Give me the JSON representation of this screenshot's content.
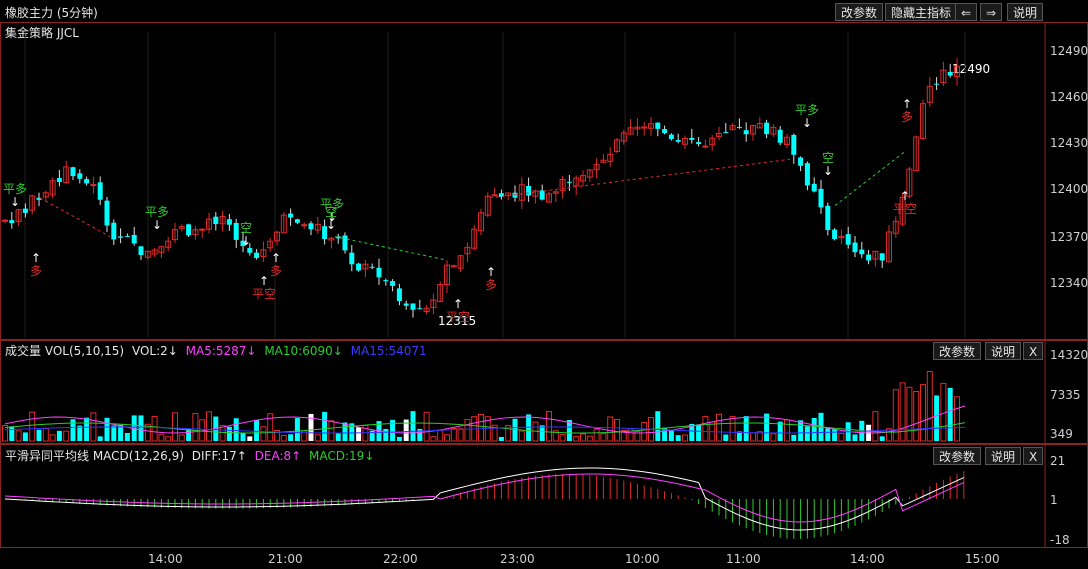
{
  "window": {
    "title": "橡胶主力 (5分钟)",
    "strategy": "集金策略 JJCL",
    "buttons": {
      "params": "改参数",
      "hide_main": "隐藏主指标",
      "back": "⇐",
      "forward": "⇒",
      "help": "说明"
    }
  },
  "main_chart": {
    "price_labels": [
      "12490",
      "12460",
      "12430",
      "12400",
      "12370",
      "12340"
    ],
    "high_marker": "12490",
    "low_marker": "12315",
    "signals": [
      {
        "text": "平多",
        "color": "#2ecc2e",
        "arrow": "↓"
      },
      {
        "text": "多",
        "color": "#e02a2a",
        "arrow": "↑"
      },
      {
        "text": "平多",
        "color": "#2ecc2e",
        "arrow": "↓"
      },
      {
        "text": "空",
        "color": "#2ecc2e",
        "arrow": "↓"
      },
      {
        "text": "平空",
        "color": "#e02a2a",
        "arrow": "↑"
      },
      {
        "text": "多",
        "color": "#e02a2a",
        "arrow": "↑"
      },
      {
        "text": "平多",
        "color": "#2ecc2e",
        "arrow": "↓"
      },
      {
        "text": "空",
        "color": "#2ecc2e",
        "arrow": "↓"
      },
      {
        "text": "平空",
        "color": "#e02a2a",
        "arrow": "↑"
      },
      {
        "text": "多",
        "color": "#e02a2a",
        "arrow": "↑"
      },
      {
        "text": "平多",
        "color": "#2ecc2e",
        "arrow": "↓"
      },
      {
        "text": "空",
        "color": "#2ecc2e",
        "arrow": "↓"
      },
      {
        "text": "平空",
        "color": "#e02a2a",
        "arrow": "↑"
      },
      {
        "text": "多",
        "color": "#e02a2a",
        "arrow": "↑"
      }
    ]
  },
  "volume_panel": {
    "title": "成交量 VOL(5,10,15)",
    "vol": "VOL:2↓",
    "ma5": "MA5:5287↓",
    "ma10": "MA10:6090↓",
    "ma15": "MA15:54071",
    "axis": [
      "14320",
      "7335",
      "349"
    ],
    "buttons": {
      "params": "改参数",
      "help": "说明",
      "close": "X"
    }
  },
  "macd_panel": {
    "title": "平滑异同平均线 MACD(12,26,9)",
    "diff": "DIFF:17↑",
    "dea": "DEA:8↑",
    "macd": "MACD:19↓",
    "axis": [
      "21",
      "1",
      "-18"
    ],
    "buttons": {
      "params": "改参数",
      "help": "说明",
      "close": "X"
    }
  },
  "time_axis": [
    "14:00",
    "21:00",
    "22:00",
    "23:00",
    "10:00",
    "11:00",
    "14:00",
    "15:00"
  ],
  "colors": {
    "up": "#e02a2a",
    "down": "#00ffff",
    "frame": "#8a2222",
    "ma5": "#ff40ff",
    "ma10": "#2ecc2e",
    "ma15": "#3333ff"
  }
}
